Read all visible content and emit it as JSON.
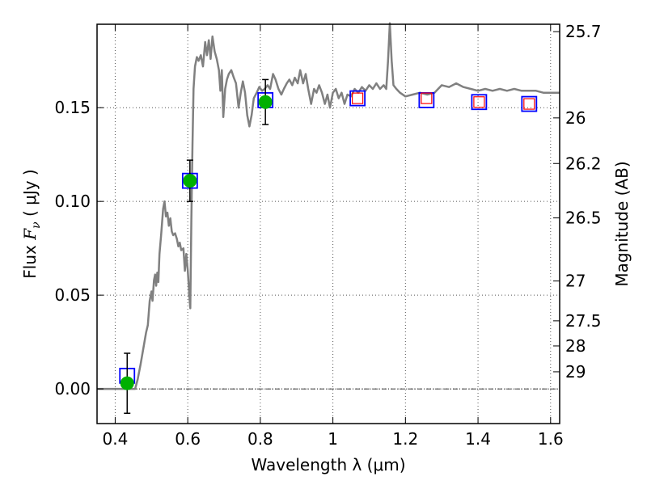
{
  "chart_data": {
    "type": "scatter",
    "xlabel": "Wavelength  λ (μm)",
    "ylabel": "Flux  F_ν  ( μJy )",
    "ylabel_parts": {
      "prefix": "Flux  ",
      "symbol": "F",
      "subscript": "ν",
      "unit": "  ( μJy )"
    },
    "y2label": "Magnitude (AB)",
    "xlim": [
      0.35,
      1.625
    ],
    "ylim": [
      -0.0185,
      0.1945
    ],
    "grid": true,
    "x_ticks": [
      {
        "value": 0.4,
        "label": "0.4"
      },
      {
        "value": 0.6,
        "label": "0.6"
      },
      {
        "value": 0.8,
        "label": "0.8"
      },
      {
        "value": 1.0,
        "label": "1"
      },
      {
        "value": 1.2,
        "label": "1.2"
      },
      {
        "value": 1.4,
        "label": "1.4"
      },
      {
        "value": 1.6,
        "label": "1.6"
      }
    ],
    "y_ticks": [
      {
        "value": 0.0,
        "label": "0.00"
      },
      {
        "value": 0.05,
        "label": "0.05"
      },
      {
        "value": 0.1,
        "label": "0.10"
      },
      {
        "value": 0.15,
        "label": "0.15"
      }
    ],
    "mag_ticks": [
      {
        "value": 25.7,
        "label": "25.7"
      },
      {
        "value": 26,
        "label": "26"
      },
      {
        "value": 26.2,
        "label": "26.2"
      },
      {
        "value": 26.5,
        "label": "26.5"
      },
      {
        "value": 27,
        "label": "27"
      },
      {
        "value": 27.5,
        "label": "27.5"
      },
      {
        "value": 28,
        "label": "28"
      },
      {
        "value": 29,
        "label": "29"
      }
    ],
    "zero_line": 0.0,
    "series": [
      {
        "kind": "line",
        "color": "#808080",
        "points": [
          [
            0.35,
            0.0
          ],
          [
            0.455,
            0.0
          ],
          [
            0.462,
            0.005
          ],
          [
            0.47,
            0.013
          ],
          [
            0.478,
            0.022
          ],
          [
            0.485,
            0.03
          ],
          [
            0.49,
            0.034
          ],
          [
            0.495,
            0.047
          ],
          [
            0.5,
            0.052
          ],
          [
            0.503,
            0.047
          ],
          [
            0.507,
            0.058
          ],
          [
            0.51,
            0.061
          ],
          [
            0.513,
            0.055
          ],
          [
            0.516,
            0.062
          ],
          [
            0.519,
            0.057
          ],
          [
            0.522,
            0.072
          ],
          [
            0.527,
            0.083
          ],
          [
            0.532,
            0.096
          ],
          [
            0.536,
            0.1
          ],
          [
            0.54,
            0.092
          ],
          [
            0.544,
            0.094
          ],
          [
            0.548,
            0.087
          ],
          [
            0.552,
            0.091
          ],
          [
            0.556,
            0.084
          ],
          [
            0.56,
            0.082
          ],
          [
            0.565,
            0.083
          ],
          [
            0.57,
            0.08
          ],
          [
            0.574,
            0.076
          ],
          [
            0.578,
            0.078
          ],
          [
            0.582,
            0.074
          ],
          [
            0.588,
            0.075
          ],
          [
            0.592,
            0.063
          ],
          [
            0.596,
            0.072
          ],
          [
            0.6,
            0.063
          ],
          [
            0.605,
            0.048
          ],
          [
            0.607,
            0.043
          ],
          [
            0.61,
            0.09
          ],
          [
            0.613,
            0.13
          ],
          [
            0.616,
            0.16
          ],
          [
            0.62,
            0.172
          ],
          [
            0.625,
            0.177
          ],
          [
            0.63,
            0.175
          ],
          [
            0.636,
            0.178
          ],
          [
            0.642,
            0.172
          ],
          [
            0.648,
            0.185
          ],
          [
            0.653,
            0.178
          ],
          [
            0.658,
            0.186
          ],
          [
            0.663,
            0.176
          ],
          [
            0.668,
            0.188
          ],
          [
            0.674,
            0.18
          ],
          [
            0.68,
            0.176
          ],
          [
            0.686,
            0.17
          ],
          [
            0.69,
            0.159
          ],
          [
            0.694,
            0.17
          ],
          [
            0.698,
            0.145
          ],
          [
            0.703,
            0.16
          ],
          [
            0.708,
            0.165
          ],
          [
            0.713,
            0.168
          ],
          [
            0.72,
            0.17
          ],
          [
            0.727,
            0.166
          ],
          [
            0.733,
            0.163
          ],
          [
            0.74,
            0.15
          ],
          [
            0.746,
            0.158
          ],
          [
            0.752,
            0.164
          ],
          [
            0.758,
            0.158
          ],
          [
            0.764,
            0.146
          ],
          [
            0.77,
            0.14
          ],
          [
            0.776,
            0.146
          ],
          [
            0.782,
            0.155
          ],
          [
            0.79,
            0.158
          ],
          [
            0.797,
            0.161
          ],
          [
            0.805,
            0.159
          ],
          [
            0.812,
            0.16
          ],
          [
            0.82,
            0.162
          ],
          [
            0.827,
            0.16
          ],
          [
            0.835,
            0.168
          ],
          [
            0.842,
            0.165
          ],
          [
            0.85,
            0.16
          ],
          [
            0.858,
            0.157
          ],
          [
            0.865,
            0.16
          ],
          [
            0.873,
            0.163
          ],
          [
            0.88,
            0.165
          ],
          [
            0.888,
            0.162
          ],
          [
            0.895,
            0.166
          ],
          [
            0.903,
            0.163
          ],
          [
            0.91,
            0.17
          ],
          [
            0.918,
            0.163
          ],
          [
            0.925,
            0.168
          ],
          [
            0.932,
            0.16
          ],
          [
            0.94,
            0.152
          ],
          [
            0.948,
            0.16
          ],
          [
            0.955,
            0.158
          ],
          [
            0.962,
            0.162
          ],
          [
            0.97,
            0.158
          ],
          [
            0.978,
            0.152
          ],
          [
            0.985,
            0.157
          ],
          [
            0.992,
            0.15
          ],
          [
            1.0,
            0.158
          ],
          [
            1.008,
            0.16
          ],
          [
            1.016,
            0.155
          ],
          [
            1.024,
            0.158
          ],
          [
            1.032,
            0.152
          ],
          [
            1.04,
            0.157
          ],
          [
            1.05,
            0.156
          ],
          [
            1.06,
            0.16
          ],
          [
            1.07,
            0.158
          ],
          [
            1.08,
            0.161
          ],
          [
            1.09,
            0.159
          ],
          [
            1.1,
            0.162
          ],
          [
            1.11,
            0.16
          ],
          [
            1.12,
            0.163
          ],
          [
            1.13,
            0.16
          ],
          [
            1.14,
            0.162
          ],
          [
            1.147,
            0.16
          ],
          [
            1.152,
            0.175
          ],
          [
            1.157,
            0.195
          ],
          [
            1.162,
            0.175
          ],
          [
            1.167,
            0.162
          ],
          [
            1.175,
            0.16
          ],
          [
            1.185,
            0.158
          ],
          [
            1.2,
            0.156
          ],
          [
            1.22,
            0.157
          ],
          [
            1.24,
            0.158
          ],
          [
            1.26,
            0.157
          ],
          [
            1.28,
            0.158
          ],
          [
            1.3,
            0.162
          ],
          [
            1.32,
            0.161
          ],
          [
            1.34,
            0.163
          ],
          [
            1.36,
            0.161
          ],
          [
            1.38,
            0.16
          ],
          [
            1.4,
            0.159
          ],
          [
            1.42,
            0.16
          ],
          [
            1.44,
            0.159
          ],
          [
            1.46,
            0.16
          ],
          [
            1.48,
            0.159
          ],
          [
            1.5,
            0.16
          ],
          [
            1.52,
            0.159
          ],
          [
            1.54,
            0.159
          ],
          [
            1.56,
            0.159
          ],
          [
            1.58,
            0.158
          ],
          [
            1.6,
            0.158
          ],
          [
            1.625,
            0.158
          ]
        ]
      },
      {
        "kind": "model_boxes",
        "color": "#0000ff",
        "points": [
          {
            "x": 0.433,
            "y": 0.007
          },
          {
            "x": 0.606,
            "y": 0.111
          },
          {
            "x": 0.814,
            "y": 0.154
          },
          {
            "x": 1.068,
            "y": 0.155
          },
          {
            "x": 1.258,
            "y": 0.154
          },
          {
            "x": 1.403,
            "y": 0.153
          },
          {
            "x": 1.541,
            "y": 0.152
          }
        ]
      },
      {
        "kind": "detections",
        "color": "#00b000",
        "points": [
          {
            "x": 0.433,
            "y": 0.003,
            "err": 0.016
          },
          {
            "x": 0.606,
            "y": 0.111,
            "err": 0.011
          },
          {
            "x": 0.814,
            "y": 0.153,
            "err": 0.012
          }
        ]
      },
      {
        "kind": "ir_boxes",
        "color": "#ff0000",
        "points": [
          {
            "x": 1.068,
            "y": 0.155
          },
          {
            "x": 1.258,
            "y": 0.155
          },
          {
            "x": 1.403,
            "y": 0.153
          },
          {
            "x": 1.541,
            "y": 0.152
          }
        ]
      }
    ]
  }
}
